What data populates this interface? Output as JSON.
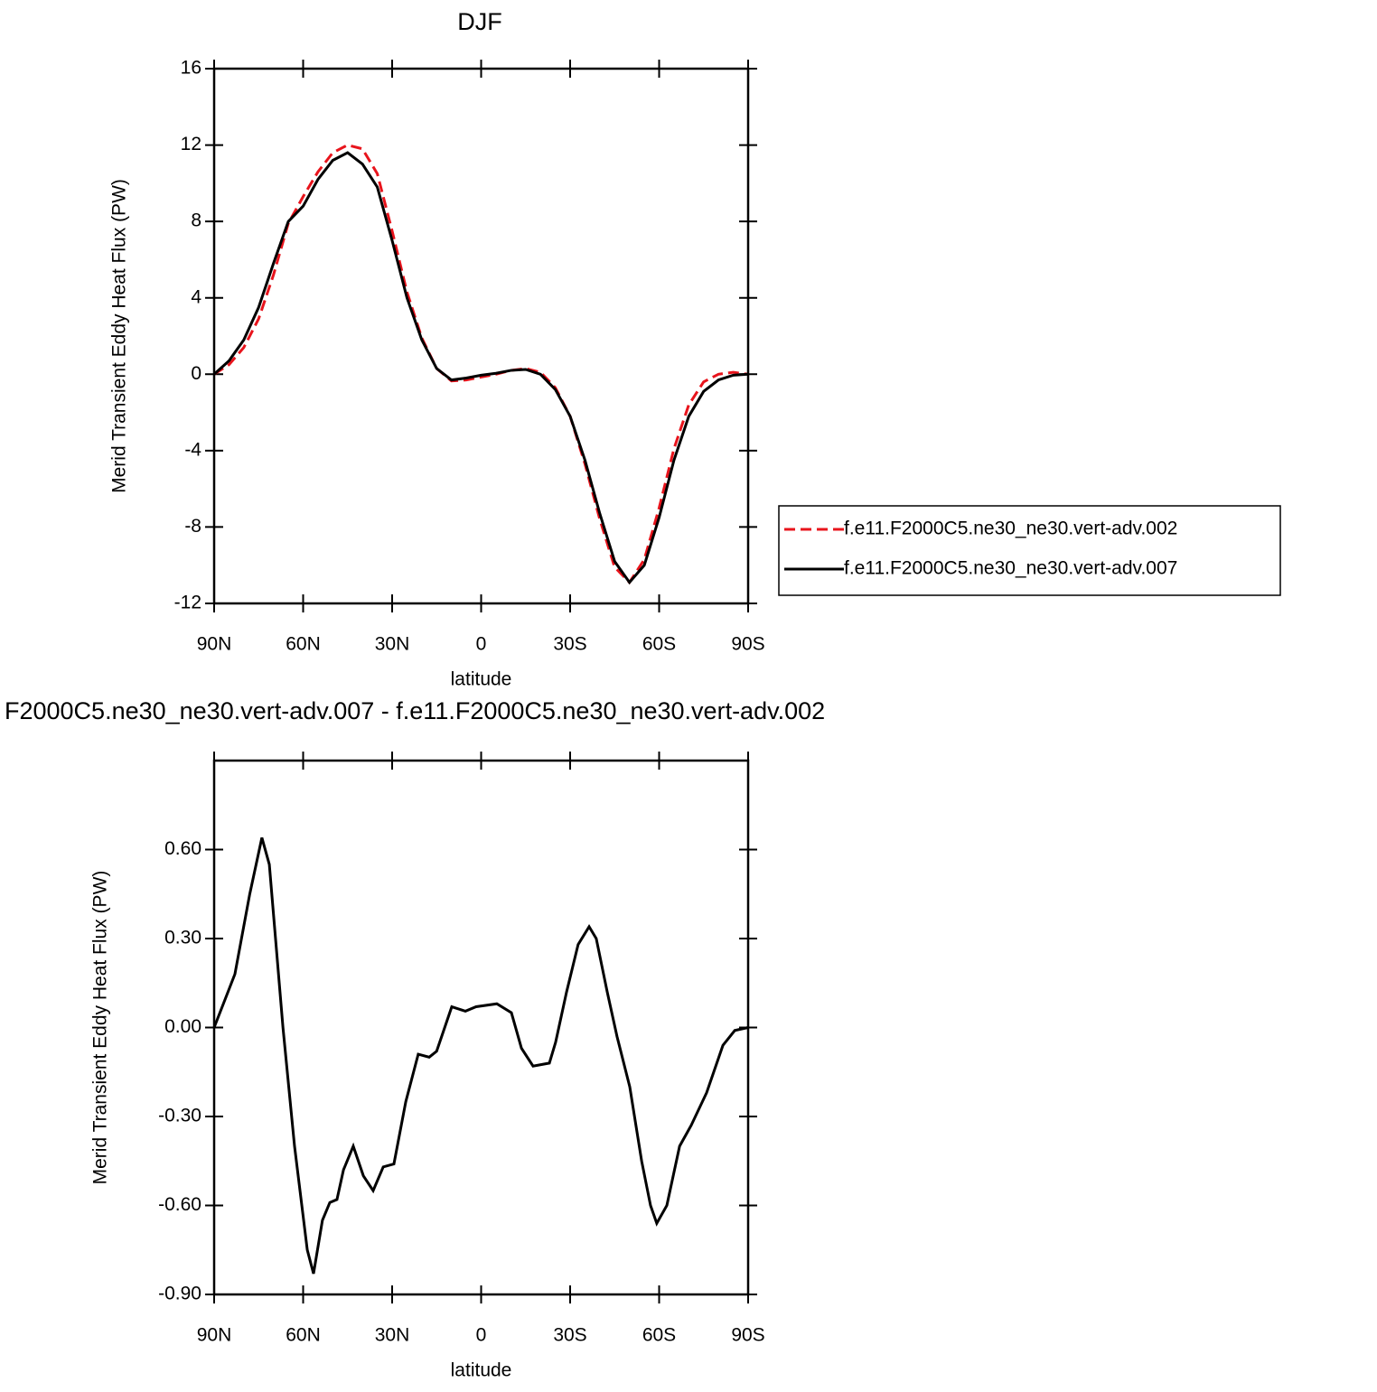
{
  "chart_data": [
    {
      "type": "line",
      "title": "DJF",
      "xlabel": "latitude",
      "ylabel": "Merid Transient Eddy Heat Flux (PW)",
      "xlim": [
        90,
        -90
      ],
      "ylim": [
        -12,
        16
      ],
      "xticks": [
        {
          "value": 90,
          "label": "90N"
        },
        {
          "value": 60,
          "label": "60N"
        },
        {
          "value": 30,
          "label": "30N"
        },
        0,
        {
          "value": -30,
          "label": "30S"
        },
        {
          "value": -60,
          "label": "60S"
        },
        {
          "value": -90,
          "label": "90S"
        }
      ],
      "yticks": [
        -12,
        -8,
        -4,
        0,
        4,
        8,
        12,
        16
      ],
      "legend": "right",
      "x": [
        90,
        85,
        80,
        75,
        70,
        65,
        60,
        55,
        50,
        45,
        40,
        35,
        30,
        25,
        20,
        15,
        10,
        5,
        0,
        -5,
        -10,
        -15,
        -20,
        -25,
        -30,
        -35,
        -40,
        -45,
        -50,
        -55,
        -60,
        -65,
        -70,
        -75,
        -80,
        -85,
        -90
      ],
      "series": [
        {
          "name": "f.e11.F2000C5.ne30_ne30.vert-adv.002",
          "color": "#e8141c",
          "line_style": "dashed",
          "values": [
            0,
            0.5,
            1.4,
            2.9,
            5.2,
            7.9,
            9.3,
            10.6,
            11.6,
            12.0,
            11.8,
            10.5,
            7.5,
            4.3,
            1.9,
            0.3,
            -0.35,
            -0.3,
            -0.15,
            0.0,
            0.2,
            0.3,
            0.1,
            -0.7,
            -2.2,
            -4.7,
            -7.6,
            -10.1,
            -10.9,
            -9.7,
            -7.0,
            -3.9,
            -1.6,
            -0.4,
            0.0,
            0.1,
            0
          ]
        },
        {
          "name": "f.e11.F2000C5.ne30_ne30.vert-adv.007",
          "color": "#000000",
          "line_style": "solid",
          "values": [
            0,
            0.7,
            1.8,
            3.5,
            5.8,
            8.0,
            8.8,
            10.2,
            11.2,
            11.6,
            11.0,
            9.8,
            7.0,
            4.0,
            1.8,
            0.3,
            -0.3,
            -0.2,
            -0.05,
            0.05,
            0.2,
            0.25,
            0.0,
            -0.8,
            -2.2,
            -4.5,
            -7.3,
            -9.8,
            -10.9,
            -10.0,
            -7.5,
            -4.5,
            -2.2,
            -0.9,
            -0.3,
            -0.05,
            0
          ]
        }
      ]
    },
    {
      "type": "line",
      "title": "F2000C5.ne30_ne30.vert-adv.007 - f.e11.F2000C5.ne30_ne30.vert-adv.002",
      "xlabel": "latitude",
      "ylabel": "Merid Transient Eddy Heat Flux (PW)",
      "xlim": [
        90,
        -90
      ],
      "ylim": [
        -0.9,
        0.9
      ],
      "xticks": [
        {
          "value": 90,
          "label": "90N"
        },
        {
          "value": 60,
          "label": "60N"
        },
        {
          "value": 30,
          "label": "30N"
        },
        0,
        {
          "value": -30,
          "label": "30S"
        },
        {
          "value": -60,
          "label": "60S"
        },
        {
          "value": -90,
          "label": "90S"
        }
      ],
      "yticks": [
        {
          "value": -0.9,
          "label": "-0.90"
        },
        {
          "value": -0.6,
          "label": "-0.60"
        },
        {
          "value": -0.3,
          "label": "-0.30"
        },
        {
          "value": 0,
          "label": "0.00"
        },
        {
          "value": 0.3,
          "label": "0.30"
        },
        {
          "value": 0.6,
          "label": "0.60"
        }
      ],
      "x": [
        90,
        83,
        78,
        73.9,
        71.4,
        66.8,
        62.9,
        58.6,
        56.5,
        53.5,
        51,
        48.6,
        46.4,
        43.1,
        39.7,
        36.4,
        33,
        29.4,
        25.4,
        21.2,
        17.5,
        15,
        9.9,
        5.3,
        1.7,
        -5.3,
        -10.2,
        -13.6,
        -17.5,
        -23,
        -25.1,
        -28.8,
        -32.7,
        -36.4,
        -38.8,
        -42.5,
        -45.8,
        -50.1,
        -54.1,
        -57.1,
        -59.2,
        -62.6,
        -66.9,
        -70.8,
        -76,
        -81.5,
        -85.5,
        -90
      ],
      "series": [
        {
          "color": "#000000",
          "line_style": "solid",
          "values": [
            0,
            0.18,
            0.45,
            0.64,
            0.55,
            0.0,
            -0.4,
            -0.75,
            -0.83,
            -0.65,
            -0.59,
            -0.58,
            -0.48,
            -0.4,
            -0.5,
            -0.55,
            -0.47,
            -0.46,
            -0.25,
            -0.09,
            -0.1,
            -0.08,
            0.07,
            0.055,
            0.07,
            0.08,
            0.05,
            -0.07,
            -0.13,
            -0.12,
            -0.05,
            0.12,
            0.28,
            0.34,
            0.3,
            0.12,
            -0.03,
            -0.2,
            -0.45,
            -0.6,
            -0.66,
            -0.6,
            -0.4,
            -0.33,
            -0.22,
            -0.06,
            -0.01,
            0
          ]
        }
      ]
    }
  ]
}
